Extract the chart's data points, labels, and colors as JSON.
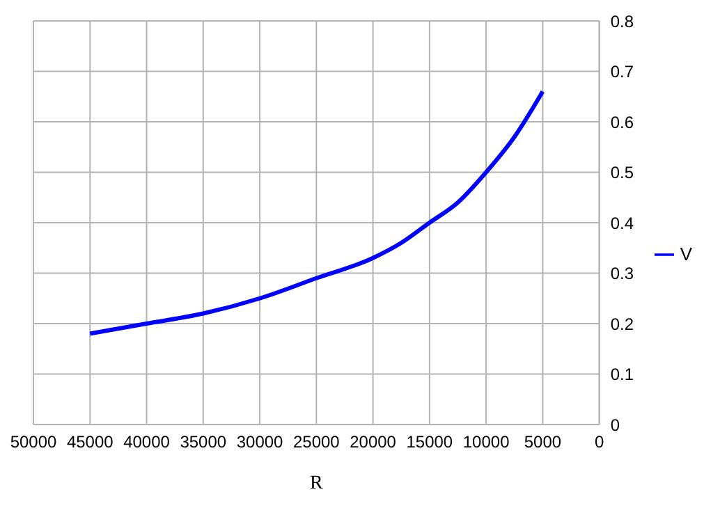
{
  "chart_data": {
    "type": "line",
    "xlabel": "R",
    "x": [
      45000,
      40000,
      35000,
      30000,
      25000,
      20000,
      17500,
      15000,
      12500,
      10000,
      7500,
      5000
    ],
    "series": [
      {
        "name": "V",
        "color": "#0000ff",
        "values": [
          0.18,
          0.2,
          0.22,
          0.25,
          0.29,
          0.33,
          0.36,
          0.4,
          0.44,
          0.5,
          0.57,
          0.66
        ]
      }
    ],
    "xlim": [
      50000,
      0
    ],
    "xticks": [
      50000,
      45000,
      40000,
      35000,
      30000,
      25000,
      20000,
      15000,
      10000,
      5000,
      0
    ],
    "ylim": [
      0,
      0.8
    ],
    "yticks": [
      0,
      0.1,
      0.2,
      0.3,
      0.4,
      0.5,
      0.6,
      0.7,
      0.8
    ],
    "grid": true,
    "legend": "right",
    "marker": "none",
    "line_style": "solid"
  }
}
